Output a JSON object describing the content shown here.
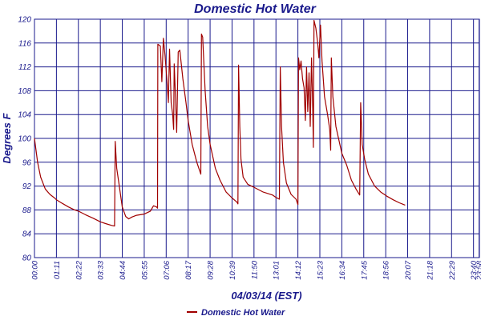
{
  "chart_data": {
    "type": "line",
    "title": "Domestic Hot Water",
    "xlabel": "04/03/14 (EST)",
    "ylabel": "Degrees F",
    "ylim": [
      80,
      120
    ],
    "yticks": [
      80,
      84,
      88,
      92,
      96,
      100,
      104,
      108,
      112,
      116,
      120
    ],
    "xlim": [
      "00:00",
      "23:59"
    ],
    "xtick_labels": [
      "00:00",
      "01:11",
      "02:22",
      "03:33",
      "04:44",
      "05:55",
      "07:06",
      "08:17",
      "09:28",
      "10:39",
      "11:50",
      "13:01",
      "14:12",
      "15:23",
      "16:34",
      "17:45",
      "18:56",
      "20:07",
      "21:18",
      "22:29",
      "23:40",
      "23:58"
    ],
    "grid": true,
    "legend_position": "bottom",
    "colors": {
      "series": "#a00000",
      "grid": "#1a1a8c",
      "text": "#1a1a8c"
    },
    "series": [
      {
        "name": "Domestic Hot Water",
        "points": [
          [
            "00:00",
            100.0
          ],
          [
            "00:10",
            96.0
          ],
          [
            "00:20",
            93.5
          ],
          [
            "00:35",
            91.5
          ],
          [
            "00:50",
            90.6
          ],
          [
            "01:05",
            90.0
          ],
          [
            "01:11",
            89.7
          ],
          [
            "01:30",
            89.1
          ],
          [
            "01:50",
            88.5
          ],
          [
            "02:10",
            88.0
          ],
          [
            "02:22",
            87.8
          ],
          [
            "02:45",
            87.2
          ],
          [
            "03:10",
            86.6
          ],
          [
            "03:33",
            86.0
          ],
          [
            "03:50",
            85.7
          ],
          [
            "04:10",
            85.4
          ],
          [
            "04:19",
            85.3
          ],
          [
            "04:21",
            99.5
          ],
          [
            "04:26",
            95.0
          ],
          [
            "04:33",
            92.5
          ],
          [
            "04:44",
            88.5
          ],
          [
            "04:55",
            86.9
          ],
          [
            "05:05",
            86.5
          ],
          [
            "05:15",
            86.8
          ],
          [
            "05:30",
            87.1
          ],
          [
            "05:55",
            87.3
          ],
          [
            "06:15",
            87.8
          ],
          [
            "06:25",
            88.7
          ],
          [
            "06:35",
            88.5
          ],
          [
            "06:38",
            88.3
          ],
          [
            "06:39",
            115.8
          ],
          [
            "06:47",
            115.5
          ],
          [
            "06:52",
            109.5
          ],
          [
            "06:57",
            116.8
          ],
          [
            "07:02",
            114.0
          ],
          [
            "07:08",
            110.0
          ],
          [
            "07:13",
            106.0
          ],
          [
            "07:17",
            115.0
          ],
          [
            "07:22",
            106.0
          ],
          [
            "07:27",
            104.0
          ],
          [
            "07:30",
            101.5
          ],
          [
            "07:32",
            112.5
          ],
          [
            "07:36",
            107.0
          ],
          [
            "07:40",
            101.0
          ],
          [
            "07:45",
            114.5
          ],
          [
            "07:50",
            114.8
          ],
          [
            "08:00",
            110.0
          ],
          [
            "08:10",
            106.0
          ],
          [
            "08:17",
            103.0
          ],
          [
            "08:30",
            99.0
          ],
          [
            "08:45",
            96.0
          ],
          [
            "08:58",
            94.0
          ],
          [
            "09:00",
            117.5
          ],
          [
            "09:04",
            117.0
          ],
          [
            "09:12",
            108.0
          ],
          [
            "09:20",
            102.0
          ],
          [
            "09:28",
            99.0
          ],
          [
            "09:45",
            95.0
          ],
          [
            "10:00",
            93.0
          ],
          [
            "10:20",
            91.0
          ],
          [
            "10:39",
            90.0
          ],
          [
            "10:55",
            89.3
          ],
          [
            "10:58",
            89.0
          ],
          [
            "11:00",
            112.3
          ],
          [
            "11:04",
            102.0
          ],
          [
            "11:08",
            96.5
          ],
          [
            "11:15",
            93.5
          ],
          [
            "11:30",
            92.3
          ],
          [
            "11:50",
            91.8
          ],
          [
            "12:20",
            91.0
          ],
          [
            "12:50",
            90.5
          ],
          [
            "13:01",
            90.1
          ],
          [
            "13:12",
            89.8
          ],
          [
            "13:15",
            112.0
          ],
          [
            "13:19",
            102.0
          ],
          [
            "13:25",
            96.0
          ],
          [
            "13:35",
            92.5
          ],
          [
            "13:50",
            90.6
          ],
          [
            "14:06",
            89.8
          ],
          [
            "14:12",
            88.9
          ],
          [
            "14:14",
            113.5
          ],
          [
            "14:18",
            111.5
          ],
          [
            "14:22",
            113.0
          ],
          [
            "14:27",
            110.0
          ],
          [
            "14:32",
            108.5
          ],
          [
            "14:36",
            103.0
          ],
          [
            "14:40",
            112.0
          ],
          [
            "14:44",
            104.5
          ],
          [
            "14:48",
            111.0
          ],
          [
            "14:52",
            102.0
          ],
          [
            "14:56",
            113.5
          ],
          [
            "15:00",
            105.0
          ],
          [
            "15:02",
            98.5
          ],
          [
            "15:04",
            119.8
          ],
          [
            "15:10",
            118.5
          ],
          [
            "15:16",
            116.0
          ],
          [
            "15:20",
            113.5
          ],
          [
            "15:25",
            119.0
          ],
          [
            "15:30",
            113.0
          ],
          [
            "15:38",
            107.0
          ],
          [
            "15:48",
            104.0
          ],
          [
            "15:55",
            101.5
          ],
          [
            "15:58",
            98.0
          ],
          [
            "16:00",
            113.5
          ],
          [
            "16:05",
            107.0
          ],
          [
            "16:15",
            102.0
          ],
          [
            "16:34",
            97.5
          ],
          [
            "16:50",
            95.5
          ],
          [
            "17:05",
            93.0
          ],
          [
            "17:20",
            91.5
          ],
          [
            "17:32",
            90.5
          ],
          [
            "17:35",
            106.0
          ],
          [
            "17:40",
            99.0
          ],
          [
            "17:48",
            96.5
          ],
          [
            "18:00",
            94.0
          ],
          [
            "18:20",
            92.0
          ],
          [
            "18:40",
            91.0
          ],
          [
            "19:00",
            90.3
          ],
          [
            "19:20",
            89.7
          ],
          [
            "19:40",
            89.2
          ],
          [
            "19:59",
            88.8
          ]
        ]
      }
    ]
  }
}
